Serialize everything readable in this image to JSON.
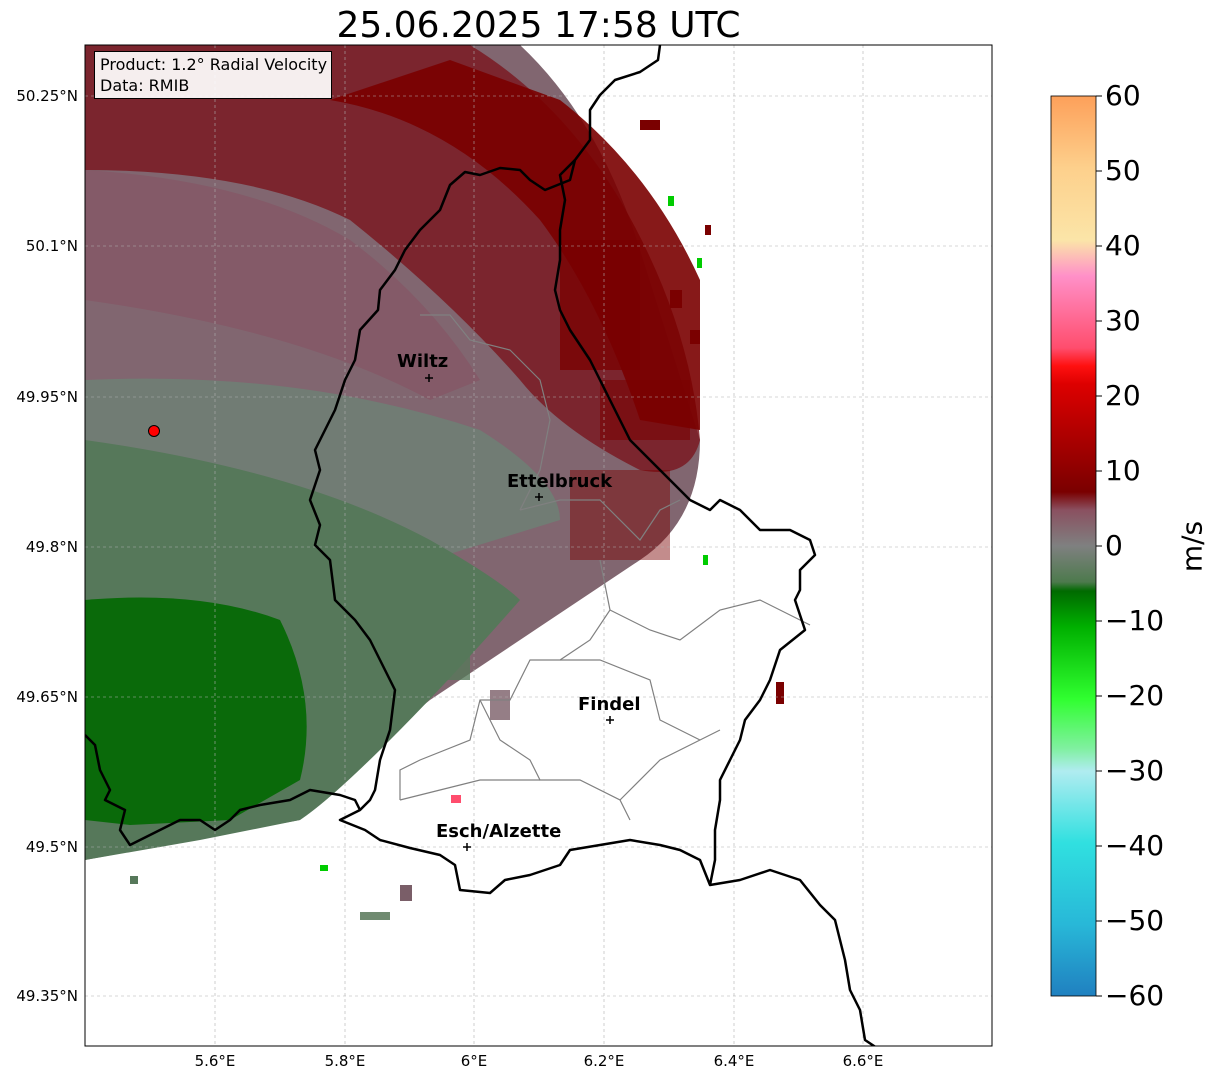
{
  "title": "25.06.2025 17:58 UTC",
  "info_box": {
    "product": "Product: 1.2° Radial Velocity",
    "data_source": "Data: RMIB"
  },
  "lat_axis": [
    "50.25°N",
    "50.1°N",
    "49.95°N",
    "49.8°N",
    "49.65°N",
    "49.5°N",
    "49.35°N"
  ],
  "lon_axis": [
    "5.6°E",
    "5.8°E",
    "6°E",
    "6.2°E",
    "6.4°E",
    "6.6°E"
  ],
  "colorbar": {
    "unit": "m/s",
    "ticks": [
      "60",
      "50",
      "40",
      "30",
      "20",
      "10",
      "0",
      "−10",
      "−20",
      "−30",
      "−40",
      "−50",
      "−60"
    ],
    "range": [
      -60,
      60
    ],
    "colors": {
      "60": "#fda05a",
      "50": "#fdd08c",
      "45": "#fbe5a8",
      "40": "#ff90c8",
      "30": "#ff4d6d",
      "25": "#ff1010",
      "20": "#dd0000",
      "10": "#7a0000",
      "5": "#8a5060",
      "0": "#7f8080",
      "-5": "#4d7a4d",
      "-10": "#006a00",
      "-20": "#00b000",
      "-30": "#30ff30",
      "-35": "#80f0a0",
      "-40": "#b0ecf0",
      "-50": "#30e0e0",
      "-60": "#2080c0"
    }
  },
  "cities": [
    {
      "name": "Wiltz"
    },
    {
      "name": "Ettelbruck"
    },
    {
      "name": "Findel"
    },
    {
      "name": "Esch/Alzette"
    }
  ],
  "radar_site": {
    "color": "#ff0000"
  },
  "map": {
    "lon_range": [
      5.4,
      6.8
    ],
    "lat_range": [
      49.3,
      50.3
    ],
    "gridlines": true,
    "country_border_color": "#000000",
    "district_border_color": "#808080"
  }
}
